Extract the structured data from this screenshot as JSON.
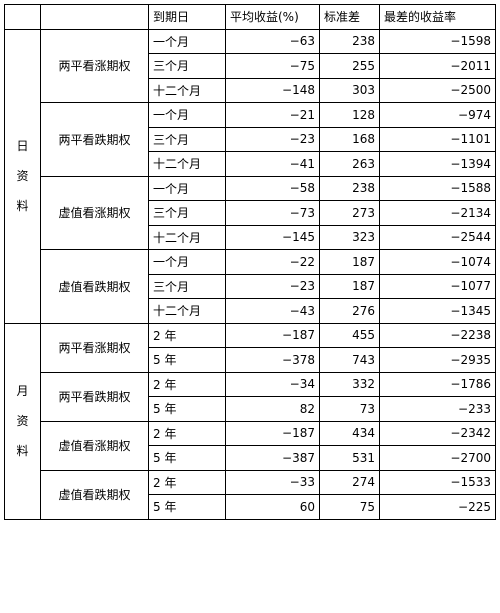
{
  "headers": [
    "",
    "",
    "到期日",
    "平均收益(%)",
    "标准差",
    "最差的收益率"
  ],
  "groups": [
    {
      "label": [
        "日",
        "资",
        "料"
      ],
      "options": [
        {
          "name": "两平看涨期权",
          "rows": [
            {
              "period": "一个月",
              "mean": "−63",
              "sd": "238",
              "worst": "−1598"
            },
            {
              "period": "三个月",
              "mean": "−75",
              "sd": "255",
              "worst": "−2011"
            },
            {
              "period": "十二个月",
              "mean": "−148",
              "sd": "303",
              "worst": "−2500"
            }
          ]
        },
        {
          "name": "两平看跌期权",
          "rows": [
            {
              "period": "一个月",
              "mean": "−21",
              "sd": "128",
              "worst": "−974"
            },
            {
              "period": "三个月",
              "mean": "−23",
              "sd": "168",
              "worst": "−1101"
            },
            {
              "period": "十二个月",
              "mean": "−41",
              "sd": "263",
              "worst": "−1394"
            }
          ]
        },
        {
          "name": "虚值看涨期权",
          "rows": [
            {
              "period": "一个月",
              "mean": "−58",
              "sd": "238",
              "worst": "−1588"
            },
            {
              "period": "三个月",
              "mean": "−73",
              "sd": "273",
              "worst": "−2134"
            },
            {
              "period": "十二个月",
              "mean": "−145",
              "sd": "323",
              "worst": "−2544"
            }
          ]
        },
        {
          "name": "虚值看跌期权",
          "rows": [
            {
              "period": "一个月",
              "mean": "−22",
              "sd": "187",
              "worst": "−1074"
            },
            {
              "period": "三个月",
              "mean": "−23",
              "sd": "187",
              "worst": "−1077"
            },
            {
              "period": "十二个月",
              "mean": "−43",
              "sd": "276",
              "worst": "−1345"
            }
          ]
        }
      ]
    },
    {
      "label": [
        "月",
        "资",
        "料"
      ],
      "options": [
        {
          "name": "两平看涨期权",
          "rows": [
            {
              "period": "2 年",
              "mean": "−187",
              "sd": "455",
              "worst": "−2238"
            },
            {
              "period": "5 年",
              "mean": "−378",
              "sd": "743",
              "worst": "−2935"
            }
          ]
        },
        {
          "name": "两平看跌期权",
          "rows": [
            {
              "period": "2 年",
              "mean": "−34",
              "sd": "332",
              "worst": "−1786"
            },
            {
              "period": "5 年",
              "mean": "82",
              "sd": "73",
              "worst": "−233"
            }
          ]
        },
        {
          "name": "虚值看涨期权",
          "rows": [
            {
              "period": "2 年",
              "mean": "−187",
              "sd": "434",
              "worst": "−2342"
            },
            {
              "period": "5 年",
              "mean": "−387",
              "sd": "531",
              "worst": "−2700"
            }
          ]
        },
        {
          "name": "虚值看跌期权",
          "rows": [
            {
              "period": "2 年",
              "mean": "−33",
              "sd": "274",
              "worst": "−1533"
            },
            {
              "period": "5 年",
              "mean": "60",
              "sd": "75",
              "worst": "−225"
            }
          ]
        }
      ]
    }
  ]
}
